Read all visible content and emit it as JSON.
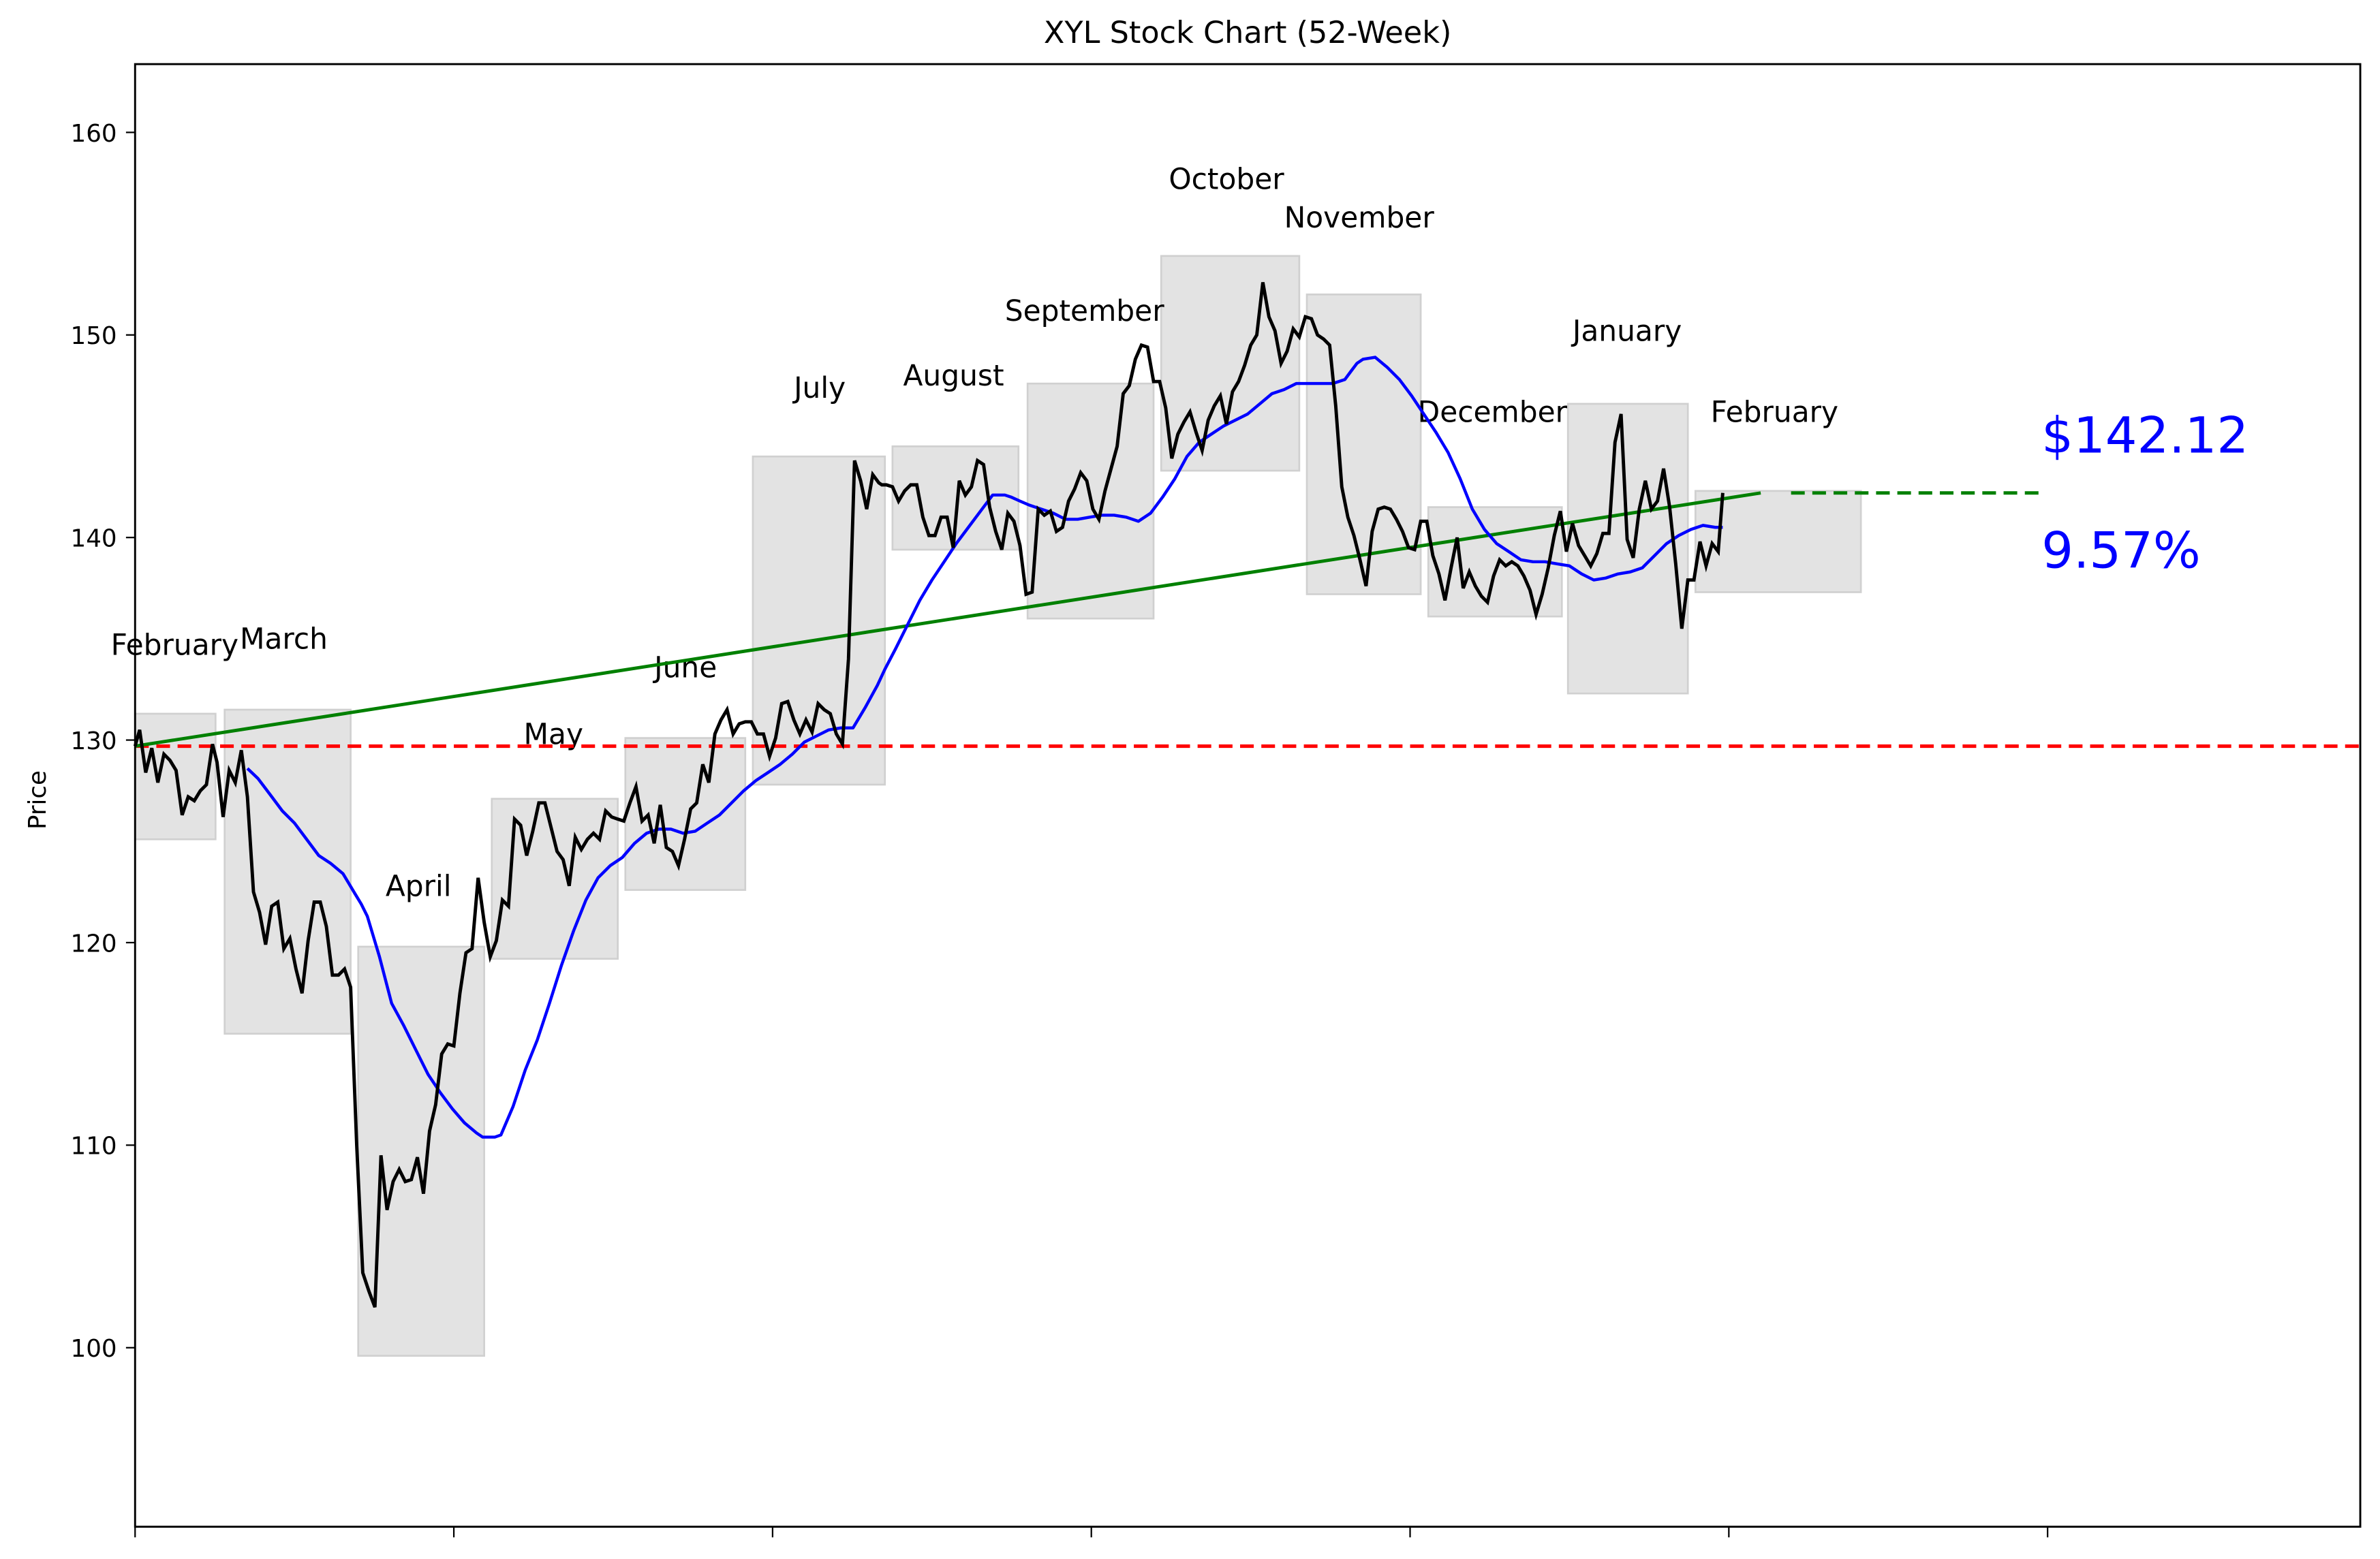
{
  "chart_data": {
    "type": "line",
    "title": "XYL Stock Chart (52-Week)",
    "xlabel": "",
    "ylabel": "Price",
    "ylim": [
      91,
      163
    ],
    "yticks": [
      100,
      110,
      120,
      130,
      140,
      150,
      160
    ],
    "xticks_count": 7,
    "xtick_labels": [],
    "grid": false,
    "legend": null,
    "colors": {
      "price": "#000000",
      "moving_average": "#0000ff",
      "trend": "#008000",
      "baseline": "#ff0000",
      "projection": "#008000",
      "month_box": "#e3e3e3",
      "annotation": "#0000ff"
    },
    "annotations": {
      "last_price": "$142.12",
      "change_pct": "9.57%"
    },
    "baseline_price": 129.7,
    "trend_line": {
      "start": [
        89,
        129.7
      ],
      "end": [
        1160,
        142.2
      ]
    },
    "projection_line": {
      "start": [
        1180,
        142.2
      ],
      "end": [
        1345,
        142.2
      ],
      "style": "dashed"
    },
    "month_boxes": [
      {
        "label": "February",
        "x0": 89,
        "x1": 142,
        "low": 125.1,
        "high": 131.3,
        "label_x": 73,
        "label_y": 134.2
      },
      {
        "label": "March",
        "x0": 148,
        "x1": 231,
        "low": 115.5,
        "high": 131.5,
        "label_x": 158,
        "label_y": 134.5
      },
      {
        "label": "April",
        "x0": 236,
        "x1": 319,
        "low": 99.6,
        "high": 119.8,
        "label_x": 254,
        "label_y": 122.3
      },
      {
        "label": "May",
        "x0": 324,
        "x1": 407,
        "low": 119.2,
        "high": 127.1,
        "label_x": 345,
        "label_y": 129.8
      },
      {
        "label": "June",
        "x0": 412,
        "x1": 491,
        "low": 122.6,
        "high": 130.1,
        "label_x": 431,
        "label_y": 133.1
      },
      {
        "label": "July",
        "x0": 496,
        "x1": 583,
        "low": 127.8,
        "high": 144.0,
        "label_x": 523,
        "label_y": 146.9
      },
      {
        "label": "August",
        "x0": 588,
        "x1": 671,
        "low": 139.4,
        "high": 144.5,
        "label_x": 595,
        "label_y": 147.5
      },
      {
        "label": "September",
        "x0": 677,
        "x1": 760,
        "low": 136.0,
        "high": 147.6,
        "label_x": 662,
        "label_y": 150.7
      },
      {
        "label": "October",
        "x0": 765,
        "x1": 856,
        "low": 143.3,
        "high": 153.9,
        "label_x": 770,
        "label_y": 157.2
      },
      {
        "label": "November",
        "x0": 861,
        "x1": 936,
        "low": 137.2,
        "high": 152.0,
        "label_x": 846,
        "label_y": 155.3
      },
      {
        "label": "December",
        "x0": 941,
        "x1": 1029,
        "low": 136.1,
        "high": 141.5,
        "label_x": 934,
        "label_y": 145.7
      },
      {
        "label": "January",
        "x0": 1033,
        "x1": 1112,
        "low": 132.3,
        "high": 146.6,
        "label_x": 1036,
        "label_y": 149.7
      },
      {
        "label": "February",
        "x0": 1117,
        "x1": 1226,
        "low": 137.3,
        "high": 142.3,
        "label_x": 1127,
        "label_y": 145.7
      }
    ],
    "series": [
      {
        "name": "Price",
        "x": [
          89,
          92,
          96,
          100,
          104,
          108,
          112,
          116,
          120,
          124,
          128,
          132,
          136,
          140,
          143,
          147,
          151,
          155,
          159,
          163,
          167,
          171,
          175,
          179,
          183,
          187,
          191,
          195,
          199,
          203,
          207,
          211,
          215,
          219,
          223,
          227,
          231,
          235,
          239,
          243,
          247,
          251,
          255,
          259,
          263,
          267,
          271,
          275,
          279,
          283,
          287,
          291,
          295,
          299,
          303,
          307,
          311,
          315,
          319,
          323,
          327,
          331,
          335,
          339,
          343,
          347,
          351,
          355,
          359,
          363,
          367,
          371,
          375,
          379,
          383,
          387,
          391,
          395,
          399,
          403,
          407,
          411,
          415,
          419,
          423,
          427,
          431,
          435,
          439,
          443,
          447,
          451,
          455,
          459,
          463,
          467,
          471,
          475,
          479,
          483,
          487,
          491,
          495,
          499,
          503,
          507,
          511,
          515,
          519,
          523,
          527,
          531,
          535,
          539,
          543,
          547,
          551,
          555,
          559,
          563,
          567,
          571,
          575,
          579,
          581,
          584,
          588,
          592,
          596,
          600,
          604,
          608,
          612,
          616,
          620,
          624,
          628,
          632,
          636,
          640,
          644,
          648,
          652,
          656,
          660,
          664,
          668,
          672,
          676,
          680,
          684,
          688,
          692,
          696,
          700,
          704,
          708,
          712,
          716,
          720,
          724,
          728,
          732,
          736,
          740,
          744,
          748,
          752,
          756,
          760,
          764,
          768,
          772,
          776,
          780,
          784,
          788,
          792,
          796,
          800,
          804,
          808,
          812,
          816,
          820,
          824,
          828,
          832,
          836,
          840,
          844,
          848,
          852,
          856,
          860,
          864,
          868,
          872,
          876,
          880,
          884,
          888,
          892,
          896,
          900,
          904,
          908,
          912,
          916,
          920,
          924,
          928,
          932,
          936,
          940,
          944,
          948,
          952,
          956,
          960,
          964,
          968,
          972,
          976,
          980,
          984,
          988,
          992,
          996,
          1000,
          1004,
          1008,
          1012,
          1016,
          1020,
          1024,
          1028,
          1032,
          1036,
          1040,
          1044,
          1048,
          1052,
          1056,
          1060,
          1064,
          1068,
          1072,
          1076,
          1080,
          1084,
          1088,
          1092,
          1096,
          1100,
          1104,
          1108,
          1112,
          1116,
          1120,
          1124,
          1128,
          1132,
          1135
        ],
        "values": [
          129.7,
          130.5,
          128.4,
          129.6,
          127.9,
          129.3,
          129.0,
          128.5,
          126.3,
          127.2,
          127.0,
          127.5,
          127.8,
          129.8,
          128.9,
          126.2,
          128.5,
          127.9,
          129.5,
          127.2,
          122.5,
          121.5,
          119.9,
          121.8,
          122.0,
          119.7,
          120.2,
          118.7,
          117.5,
          120.1,
          122.0,
          122.0,
          120.8,
          118.4,
          118.4,
          118.7,
          117.8,
          110.0,
          103.7,
          102.8,
          102.0,
          109.5,
          106.8,
          108.2,
          108.8,
          108.2,
          108.3,
          109.4,
          107.6,
          110.7,
          112.0,
          114.5,
          115.0,
          114.9,
          117.5,
          119.5,
          119.7,
          123.2,
          121.0,
          119.3,
          120.1,
          122.1,
          121.8,
          126.1,
          125.8,
          124.3,
          125.5,
          126.9,
          126.9,
          125.7,
          124.5,
          124.1,
          122.8,
          125.2,
          124.6,
          125.1,
          125.4,
          125.1,
          126.5,
          126.2,
          126.1,
          126.0,
          126.9,
          127.7,
          126.0,
          126.3,
          124.9,
          126.8,
          124.7,
          124.5,
          123.8,
          125.1,
          126.6,
          126.9,
          128.8,
          127.9,
          130.3,
          131.0,
          131.5,
          130.3,
          130.8,
          130.9,
          130.9,
          130.3,
          130.3,
          129.2,
          130.1,
          131.8,
          131.9,
          131.0,
          130.3,
          131.0,
          130.4,
          131.8,
          131.5,
          131.3,
          130.3,
          129.8,
          134.0,
          143.8,
          142.8,
          141.4,
          143.1,
          142.7,
          142.6,
          142.6,
          142.5,
          141.8,
          142.3,
          142.6,
          142.6,
          141.0,
          140.1,
          140.1,
          141.0,
          141.0,
          139.5,
          142.8,
          142.1,
          142.5,
          143.8,
          143.6,
          141.5,
          140.3,
          139.4,
          141.2,
          140.8,
          139.6,
          137.2,
          137.3,
          141.4,
          141.1,
          141.3,
          140.3,
          140.5,
          141.8,
          142.4,
          143.2,
          142.8,
          141.4,
          140.9,
          142.3,
          143.4,
          144.5,
          147.1,
          147.5,
          148.8,
          149.5,
          149.4,
          147.7,
          147.7,
          146.4,
          143.9,
          145.1,
          145.7,
          146.2,
          145.2,
          144.3,
          145.8,
          146.5,
          147.0,
          145.6,
          147.2,
          147.7,
          148.5,
          149.5,
          150.0,
          152.6,
          150.9,
          150.2,
          148.6,
          149.2,
          150.3,
          149.9,
          150.9,
          150.8,
          150.0,
          149.8,
          149.5,
          146.5,
          142.5,
          141.0,
          140.1,
          138.9,
          137.6,
          140.3,
          141.4,
          141.5,
          141.4,
          140.9,
          140.3,
          139.5,
          139.4,
          140.8,
          140.8,
          139.1,
          138.2,
          136.9,
          138.5,
          140.0,
          137.5,
          138.3,
          137.6,
          137.1,
          136.8,
          138.1,
          138.9,
          138.6,
          138.8,
          138.6,
          138.1,
          137.4,
          136.2,
          137.2,
          138.5,
          140.1,
          141.3,
          139.3,
          140.7,
          139.6,
          139.1,
          138.6,
          139.2,
          140.2,
          140.2,
          144.7,
          146.1,
          139.9,
          139.0,
          141.4,
          142.8,
          141.4,
          141.8,
          143.4,
          141.5,
          138.7,
          135.5,
          137.9,
          137.9,
          139.8,
          138.6,
          139.7,
          139.3,
          142.2
        ]
      },
      {
        "name": "Moving Average",
        "x": [
          163,
          170,
          178,
          186,
          194,
          202,
          210,
          218,
          226,
          234,
          238,
          242,
          250,
          258,
          266,
          274,
          282,
          290,
          298,
          306,
          314,
          318,
          322,
          326,
          330,
          338,
          346,
          354,
          362,
          370,
          378,
          386,
          394,
          402,
          410,
          418,
          426,
          434,
          442,
          450,
          458,
          466,
          474,
          482,
          490,
          498,
          506,
          514,
          522,
          530,
          538,
          546,
          554,
          562,
          570,
          578,
          583,
          590,
          598,
          606,
          614,
          622,
          630,
          638,
          646,
          654,
          662,
          666,
          672,
          678,
          686,
          694,
          702,
          710,
          718,
          726,
          734,
          742,
          750,
          758,
          766,
          774,
          782,
          790,
          798,
          806,
          814,
          822,
          830,
          838,
          846,
          854,
          862,
          870,
          878,
          886,
          890,
          894,
          898,
          906,
          914,
          922,
          930,
          938,
          946,
          954,
          962,
          970,
          978,
          986,
          994,
          1002,
          1010,
          1018,
          1026,
          1034,
          1042,
          1050,
          1058,
          1066,
          1074,
          1082,
          1090,
          1098,
          1106,
          1114,
          1122,
          1130,
          1135
        ],
        "values": [
          128.6,
          128.1,
          127.3,
          126.5,
          125.9,
          125.1,
          124.3,
          123.9,
          123.4,
          122.4,
          121.9,
          121.3,
          119.3,
          117.0,
          115.9,
          114.7,
          113.5,
          112.6,
          111.8,
          111.1,
          110.6,
          110.4,
          110.4,
          110.4,
          110.5,
          111.9,
          113.7,
          115.2,
          117.0,
          118.9,
          120.6,
          122.1,
          123.2,
          123.8,
          124.2,
          124.9,
          125.4,
          125.6,
          125.6,
          125.4,
          125.5,
          125.9,
          126.3,
          126.9,
          127.5,
          128.0,
          128.4,
          128.8,
          129.3,
          129.9,
          130.2,
          130.5,
          130.6,
          130.6,
          131.6,
          132.7,
          133.5,
          134.5,
          135.7,
          136.9,
          137.9,
          138.8,
          139.7,
          140.5,
          141.3,
          142.1,
          142.1,
          142.0,
          141.8,
          141.6,
          141.4,
          141.2,
          140.9,
          140.9,
          141.0,
          141.1,
          141.1,
          141.0,
          140.8,
          141.2,
          142.0,
          142.9,
          144.0,
          144.7,
          145.1,
          145.5,
          145.8,
          146.1,
          146.6,
          147.1,
          147.3,
          147.6,
          147.6,
          147.6,
          147.6,
          147.8,
          148.2,
          148.6,
          148.8,
          148.9,
          148.4,
          147.8,
          147.0,
          146.1,
          145.2,
          144.2,
          142.9,
          141.4,
          140.4,
          139.7,
          139.3,
          138.9,
          138.8,
          138.8,
          138.7,
          138.6,
          138.2,
          137.9,
          138.0,
          138.2,
          138.3,
          138.5,
          139.1,
          139.7,
          140.1,
          140.4,
          140.6,
          140.5,
          140.5
        ]
      }
    ]
  }
}
